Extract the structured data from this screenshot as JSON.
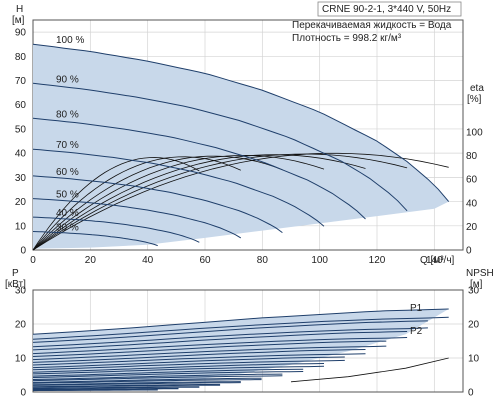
{
  "chart_data": {
    "type": "line",
    "title": "CRNE 90-2-1, 3*440 V, 50Hz",
    "info_liquid": "Перекачиваемая жидкость = Вода",
    "info_density": "Плотность = 998.2 кг/м³",
    "x_label": "Q [м³/ч]",
    "x_ticks": [
      "0",
      "20",
      "40",
      "60",
      "80",
      "100",
      "120",
      "140"
    ],
    "xlim": [
      0,
      150
    ],
    "colors": {
      "curve": "#1f3f6b",
      "band": "#c8d8ea",
      "grid": "#d4d4d4"
    },
    "head_panel": {
      "y_label_top": "H",
      "y_label_unit": "[м]",
      "y_ticks": [
        "0",
        "10",
        "20",
        "30",
        "40",
        "50",
        "60",
        "70",
        "80",
        "90"
      ],
      "ylim": [
        0,
        95
      ],
      "right_label_top": "eta",
      "right_label_unit": "[%]",
      "right_ticks": [
        "0",
        "20",
        "40",
        "60",
        "80",
        "100"
      ],
      "right_lim": [
        0,
        100
      ],
      "speed_labels": [
        "100 %",
        "90 %",
        "80 %",
        "70 %",
        "60 %",
        "50 %",
        "40 %",
        "30 %"
      ],
      "speeds": [
        1.0,
        0.9,
        0.8,
        0.7,
        0.6,
        0.5,
        0.4,
        0.3
      ],
      "full_speed_H": [
        [
          0,
          85
        ],
        [
          20,
          82
        ],
        [
          40,
          78
        ],
        [
          60,
          73
        ],
        [
          80,
          66
        ],
        [
          100,
          57
        ],
        [
          120,
          45
        ],
        [
          130,
          37
        ],
        [
          140,
          27
        ],
        [
          145,
          20
        ]
      ],
      "efficiency_peak_percent": 82,
      "efficiency_bep_q": 105
    },
    "power_panel": {
      "y_label_top": "P",
      "y_label_unit": "[кВт]",
      "y_ticks": [
        "0",
        "10",
        "20",
        "30"
      ],
      "ylim": [
        0,
        30
      ],
      "right_label_top": "NPSH",
      "right_label_unit": "[м]",
      "right_ticks": [
        "0",
        "10",
        "20",
        "30"
      ],
      "right_lim": [
        0,
        30
      ],
      "curve_labels": [
        "P1",
        "P2"
      ],
      "full_speed_P1": [
        [
          0,
          17
        ],
        [
          20,
          18
        ],
        [
          40,
          19.2
        ],
        [
          60,
          20.5
        ],
        [
          80,
          21.8
        ],
        [
          100,
          22.8
        ],
        [
          120,
          23.8
        ],
        [
          140,
          24.3
        ],
        [
          145,
          24.4
        ]
      ],
      "full_speed_P2": [
        [
          0,
          15.5
        ],
        [
          20,
          16.5
        ],
        [
          40,
          17.6
        ],
        [
          60,
          18.8
        ],
        [
          80,
          19.8
        ],
        [
          100,
          20.7
        ],
        [
          120,
          21.4
        ],
        [
          140,
          21.8
        ],
        [
          145,
          22
        ]
      ],
      "npsh": [
        [
          90,
          3
        ],
        [
          110,
          4.5
        ],
        [
          130,
          7
        ],
        [
          145,
          10
        ]
      ]
    }
  }
}
